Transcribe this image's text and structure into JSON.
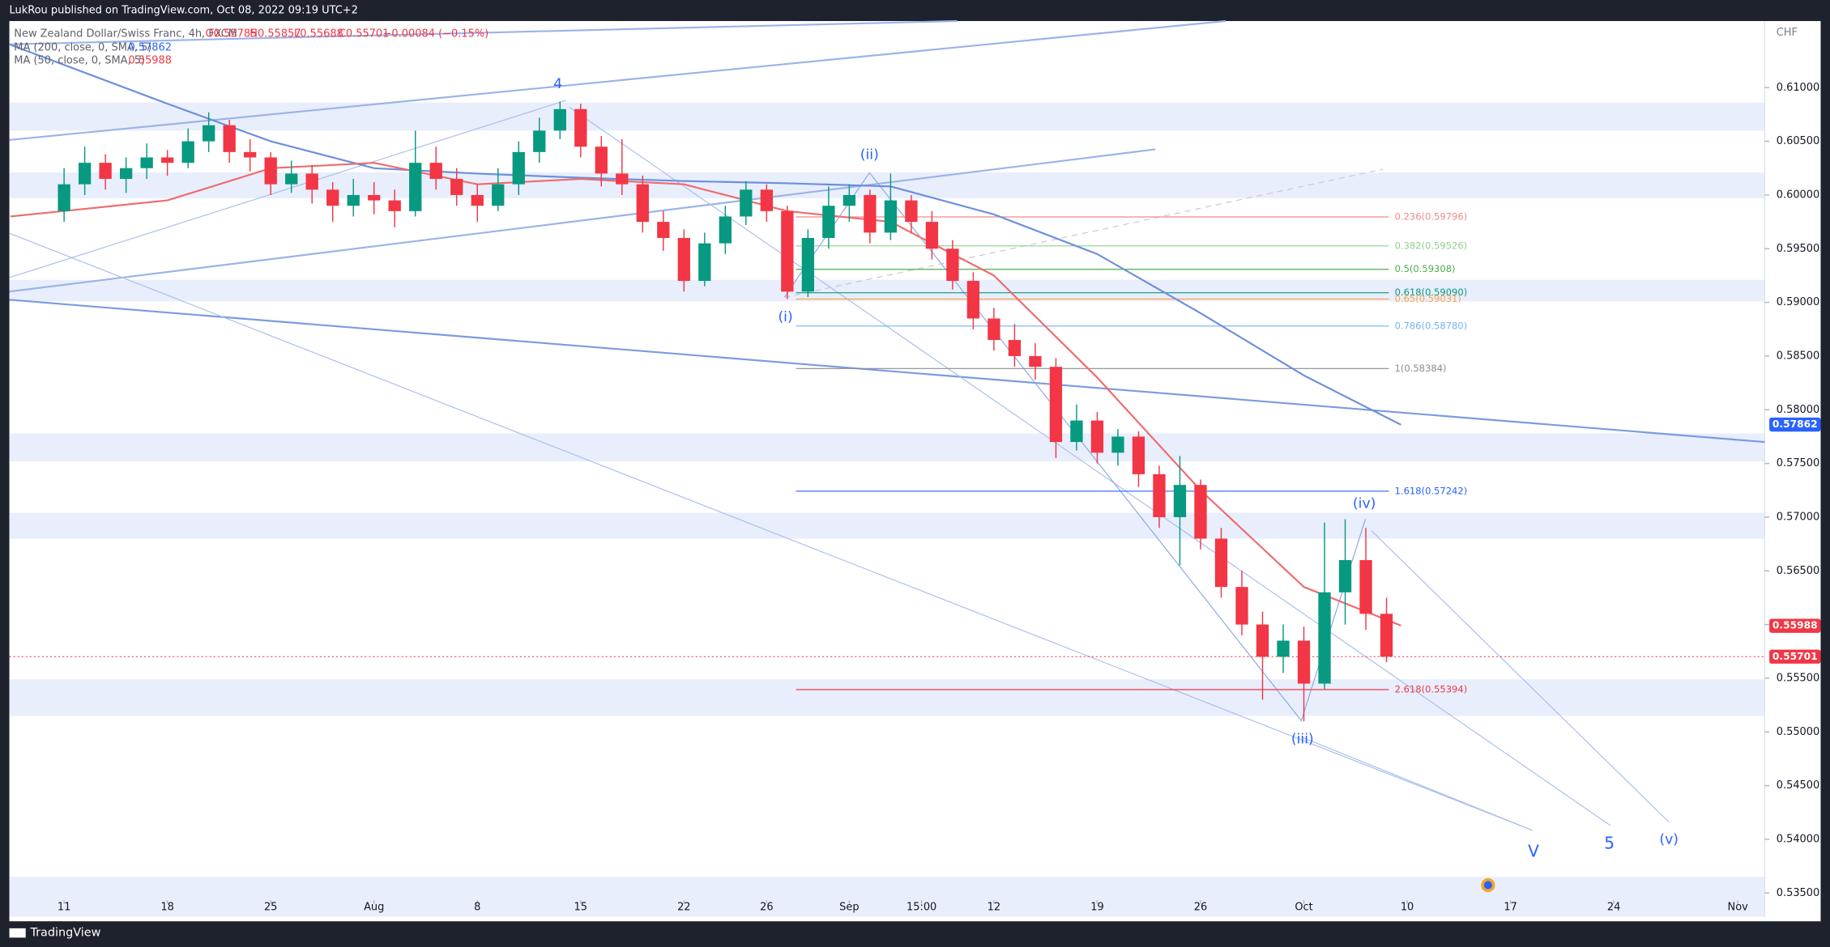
{
  "header": {
    "publisher": "LukRou published on TradingView.com, Oct 08, 2022 09:19 UTC+2",
    "brand": "TradingView"
  },
  "chart_data": {
    "type": "candlestick",
    "symbol": "New Zealand Dollar/Swiss Franc, 4h, FXCM",
    "ohlc": [
      "O0.55785",
      "H0.55857",
      "L0.55688",
      "C0.55701"
    ],
    "change": "−0.00084 (−0.15%)",
    "currency": "CHF",
    "up_color": "#089981",
    "down_color": "#f23645",
    "x": [
      0,
      1,
      2,
      3,
      4,
      5,
      6,
      7,
      8,
      9,
      10,
      11,
      12,
      13,
      14,
      15,
      16,
      17,
      18,
      19,
      20,
      21,
      22,
      23,
      24,
      25,
      26,
      27,
      28,
      29,
      30,
      31,
      32,
      33,
      34,
      35,
      36,
      37,
      38,
      39,
      40,
      41,
      42,
      43,
      44,
      45,
      46,
      47,
      48,
      49,
      50,
      51,
      52,
      53,
      54,
      55,
      56,
      57,
      58,
      59,
      60,
      61,
      62,
      63,
      64
    ],
    "open": [
      0.5985,
      0.601,
      0.603,
      0.6015,
      0.6025,
      0.6035,
      0.603,
      0.605,
      0.6065,
      0.604,
      0.6035,
      0.601,
      0.602,
      0.6005,
      0.599,
      0.6,
      0.5995,
      0.5985,
      0.603,
      0.6015,
      0.6,
      0.599,
      0.601,
      0.604,
      0.606,
      0.608,
      0.6045,
      0.602,
      0.601,
      0.5975,
      0.596,
      0.592,
      0.5955,
      0.598,
      0.6005,
      0.5985,
      0.591,
      0.596,
      0.599,
      0.6,
      0.5965,
      0.5995,
      0.5975,
      0.595,
      0.592,
      0.5885,
      0.5865,
      0.585,
      0.584,
      0.577,
      0.579,
      0.576,
      0.5775,
      0.574,
      0.57,
      0.573,
      0.568,
      0.5635,
      0.56,
      0.557,
      0.5585,
      0.5545,
      0.563,
      0.566,
      0.561
    ],
    "high": [
      0.6025,
      0.6045,
      0.6038,
      0.6035,
      0.6048,
      0.6042,
      0.6062,
      0.6077,
      0.607,
      0.6052,
      0.604,
      0.6032,
      0.6028,
      0.6012,
      0.6015,
      0.6012,
      0.6005,
      0.606,
      0.6045,
      0.6025,
      0.601,
      0.6025,
      0.605,
      0.6072,
      0.6087,
      0.6085,
      0.6055,
      0.6052,
      0.6018,
      0.5985,
      0.5968,
      0.5965,
      0.599,
      0.6013,
      0.601,
      0.599,
      0.5968,
      0.6008,
      0.601,
      0.6005,
      0.602,
      0.6,
      0.5985,
      0.5958,
      0.5928,
      0.5895,
      0.588,
      0.5862,
      0.5848,
      0.5805,
      0.5798,
      0.5782,
      0.578,
      0.5748,
      0.5757,
      0.5735,
      0.569,
      0.565,
      0.5612,
      0.56,
      0.5598,
      0.5695,
      0.5698,
      0.569,
      0.5625
    ],
    "low": [
      0.5975,
      0.6,
      0.6005,
      0.6002,
      0.6015,
      0.6018,
      0.6025,
      0.604,
      0.603,
      0.6022,
      0.6,
      0.6002,
      0.5992,
      0.5975,
      0.598,
      0.5982,
      0.597,
      0.598,
      0.6005,
      0.599,
      0.5975,
      0.5985,
      0.6,
      0.603,
      0.6052,
      0.6035,
      0.6008,
      0.6,
      0.5965,
      0.5948,
      0.591,
      0.5915,
      0.5945,
      0.5972,
      0.5975,
      0.5903,
      0.5905,
      0.595,
      0.5975,
      0.5955,
      0.5958,
      0.5965,
      0.594,
      0.5912,
      0.5875,
      0.5855,
      0.584,
      0.5828,
      0.5755,
      0.5762,
      0.575,
      0.5748,
      0.5728,
      0.569,
      0.5655,
      0.567,
      0.5625,
      0.559,
      0.553,
      0.5555,
      0.551,
      0.554,
      0.56,
      0.5595,
      0.5565
    ],
    "close": [
      0.601,
      0.603,
      0.6015,
      0.6025,
      0.6035,
      0.603,
      0.605,
      0.6065,
      0.604,
      0.6035,
      0.601,
      0.602,
      0.6005,
      0.599,
      0.6,
      0.5995,
      0.5985,
      0.603,
      0.6015,
      0.6,
      0.599,
      0.601,
      0.604,
      0.606,
      0.608,
      0.6045,
      0.602,
      0.601,
      0.5975,
      0.596,
      0.592,
      0.5955,
      0.598,
      0.6005,
      0.5985,
      0.591,
      0.596,
      0.599,
      0.6,
      0.5965,
      0.5995,
      0.5975,
      0.595,
      0.592,
      0.5885,
      0.5865,
      0.585,
      0.584,
      0.577,
      0.579,
      0.576,
      0.5775,
      0.574,
      0.57,
      0.573,
      0.568,
      0.5635,
      0.56,
      0.557,
      0.5585,
      0.5545,
      0.563,
      0.566,
      0.561,
      0.557
    ],
    "lines": [
      {
        "name": "MA (200, close, 0, SMA, 5)",
        "last_label": "0.57862",
        "color": "#6c8fdc",
        "x": [
          -2.6,
          5,
          10,
          15,
          20,
          25,
          30,
          35,
          40,
          45,
          50,
          55,
          60,
          64.7
        ],
        "values": [
          0.614,
          0.6085,
          0.605,
          0.6025,
          0.602,
          0.6016,
          0.6013,
          0.6011,
          0.6008,
          0.5982,
          0.5945,
          0.589,
          0.5832,
          0.5786
        ]
      },
      {
        "name": "MA (50, close, 0, SMA, 5)",
        "last_label": "0.55988",
        "color": "#ef6b6b",
        "x": [
          -2.6,
          5,
          10,
          15,
          20,
          25,
          30,
          35,
          40,
          45,
          50,
          55,
          60,
          64.7
        ],
        "values": [
          0.598,
          0.5995,
          0.6025,
          0.603,
          0.601,
          0.6015,
          0.601,
          0.5985,
          0.5975,
          0.5925,
          0.583,
          0.5725,
          0.5635,
          0.5599
        ]
      }
    ],
    "zones": [
      [
        0.606,
        0.6086
      ],
      [
        0.5997,
        0.6021
      ],
      [
        0.5901,
        0.5921
      ],
      [
        0.5752,
        0.5778
      ],
      [
        0.568,
        0.5704
      ],
      [
        0.5515,
        0.5549
      ],
      [
        0.5328,
        0.5365
      ]
    ],
    "fib_levels": [
      {
        "label": "0.236(0.59796)",
        "value": 0.59796,
        "color": "#f08a86"
      },
      {
        "label": "0.382(0.59526)",
        "value": 0.59526,
        "color": "#8fd18f"
      },
      {
        "label": "0.5(0.59308)",
        "value": 0.59308,
        "color": "#4caf50"
      },
      {
        "label": "0.618(0.59090)",
        "value": 0.5909,
        "color": "#089981"
      },
      {
        "label": "0.65(0.59031)",
        "value": 0.59031,
        "color": "#f5a54a"
      },
      {
        "label": "0.786(0.58780)",
        "value": 0.5878,
        "color": "#6fb4f0"
      },
      {
        "label": "1(0.58384)",
        "value": 0.58384,
        "color": "#8a8d96"
      },
      {
        "label": "1.618(0.57242)",
        "value": 0.57242,
        "color": "#2962ff"
      },
      {
        "label": "2.618(0.55394)",
        "value": 0.55394,
        "color": "#f23645"
      }
    ],
    "price_tags": [
      {
        "label": "0.57862",
        "value": 0.57862,
        "color": "#2962ff"
      },
      {
        "label": "0.55988",
        "value": 0.55988,
        "color": "#f23645"
      },
      {
        "label": "0.55701",
        "value": 0.55701,
        "color": "#f23645"
      }
    ],
    "waves": [
      "4",
      "(ii)",
      "(i)",
      "(iii)",
      "(iv)",
      "V",
      "5",
      "(v)"
    ],
    "xlim": [
      -2.65,
      82.3
    ],
    "xticks": [
      {
        "value": 0,
        "label": "11"
      },
      {
        "value": 5,
        "label": "18"
      },
      {
        "value": 10,
        "label": "25"
      },
      {
        "value": 15,
        "label": "Aug"
      },
      {
        "value": 20,
        "label": "8"
      },
      {
        "value": 25,
        "label": "15"
      },
      {
        "value": 30,
        "label": "22"
      },
      {
        "value": 34,
        "label": "26"
      },
      {
        "value": 38,
        "label": "Sep"
      },
      {
        "value": 41.5,
        "label": "15:00"
      },
      {
        "value": 45,
        "label": "12"
      },
      {
        "value": 50,
        "label": "19"
      },
      {
        "value": 55,
        "label": "26"
      },
      {
        "value": 60,
        "label": "Oct"
      },
      {
        "value": 65,
        "label": "10"
      },
      {
        "value": 70,
        "label": "17"
      },
      {
        "value": 75,
        "label": "24"
      },
      {
        "value": 81,
        "label": "Nov"
      }
    ],
    "ylim": [
      0.5328,
      0.6162
    ],
    "yticks": [
      {
        "value": 0.61,
        "label": "0.61000"
      },
      {
        "value": 0.605,
        "label": "0.60500"
      },
      {
        "value": 0.6,
        "label": "0.60000"
      },
      {
        "value": 0.595,
        "label": "0.59500"
      },
      {
        "value": 0.59,
        "label": "0.59000"
      },
      {
        "value": 0.585,
        "label": "0.58500"
      },
      {
        "value": 0.58,
        "label": "0.58000"
      },
      {
        "value": 0.575,
        "label": "0.57500"
      },
      {
        "value": 0.57,
        "label": "0.57000"
      },
      {
        "value": 0.565,
        "label": "0.56500"
      },
      {
        "value": 0.56,
        "label": "0.56000"
      },
      {
        "value": 0.555,
        "label": "0.55500"
      },
      {
        "value": 0.55,
        "label": "0.55000"
      },
      {
        "value": 0.545,
        "label": "0.54500"
      },
      {
        "value": 0.54,
        "label": "0.54000"
      },
      {
        "value": 0.535,
        "label": "0.53500"
      }
    ]
  }
}
